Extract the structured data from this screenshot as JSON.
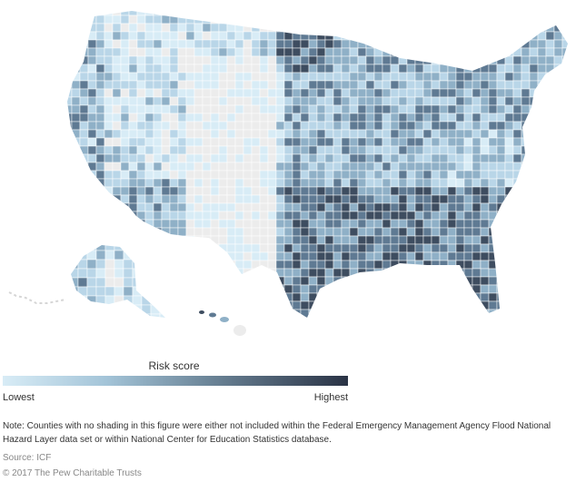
{
  "legend": {
    "title": "Risk score",
    "low_label": "Lowest",
    "high_label": "Highest",
    "colors": [
      "#d8ecf6",
      "#a3c4d8",
      "#6b8497",
      "#2a3345"
    ]
  },
  "note": "Note: Counties with no shading in this figure were either not included within the Federal Emergency Management Agency Flood National Hazard Layer data set or within National Center for Education Statistics database.",
  "source": "Source: ICF",
  "copyright": "© 2017 The Pew Charitable Trusts",
  "map": {
    "regions": [
      "contiguous-us",
      "alaska",
      "hawaii"
    ],
    "no_data_color": "#ececec"
  }
}
